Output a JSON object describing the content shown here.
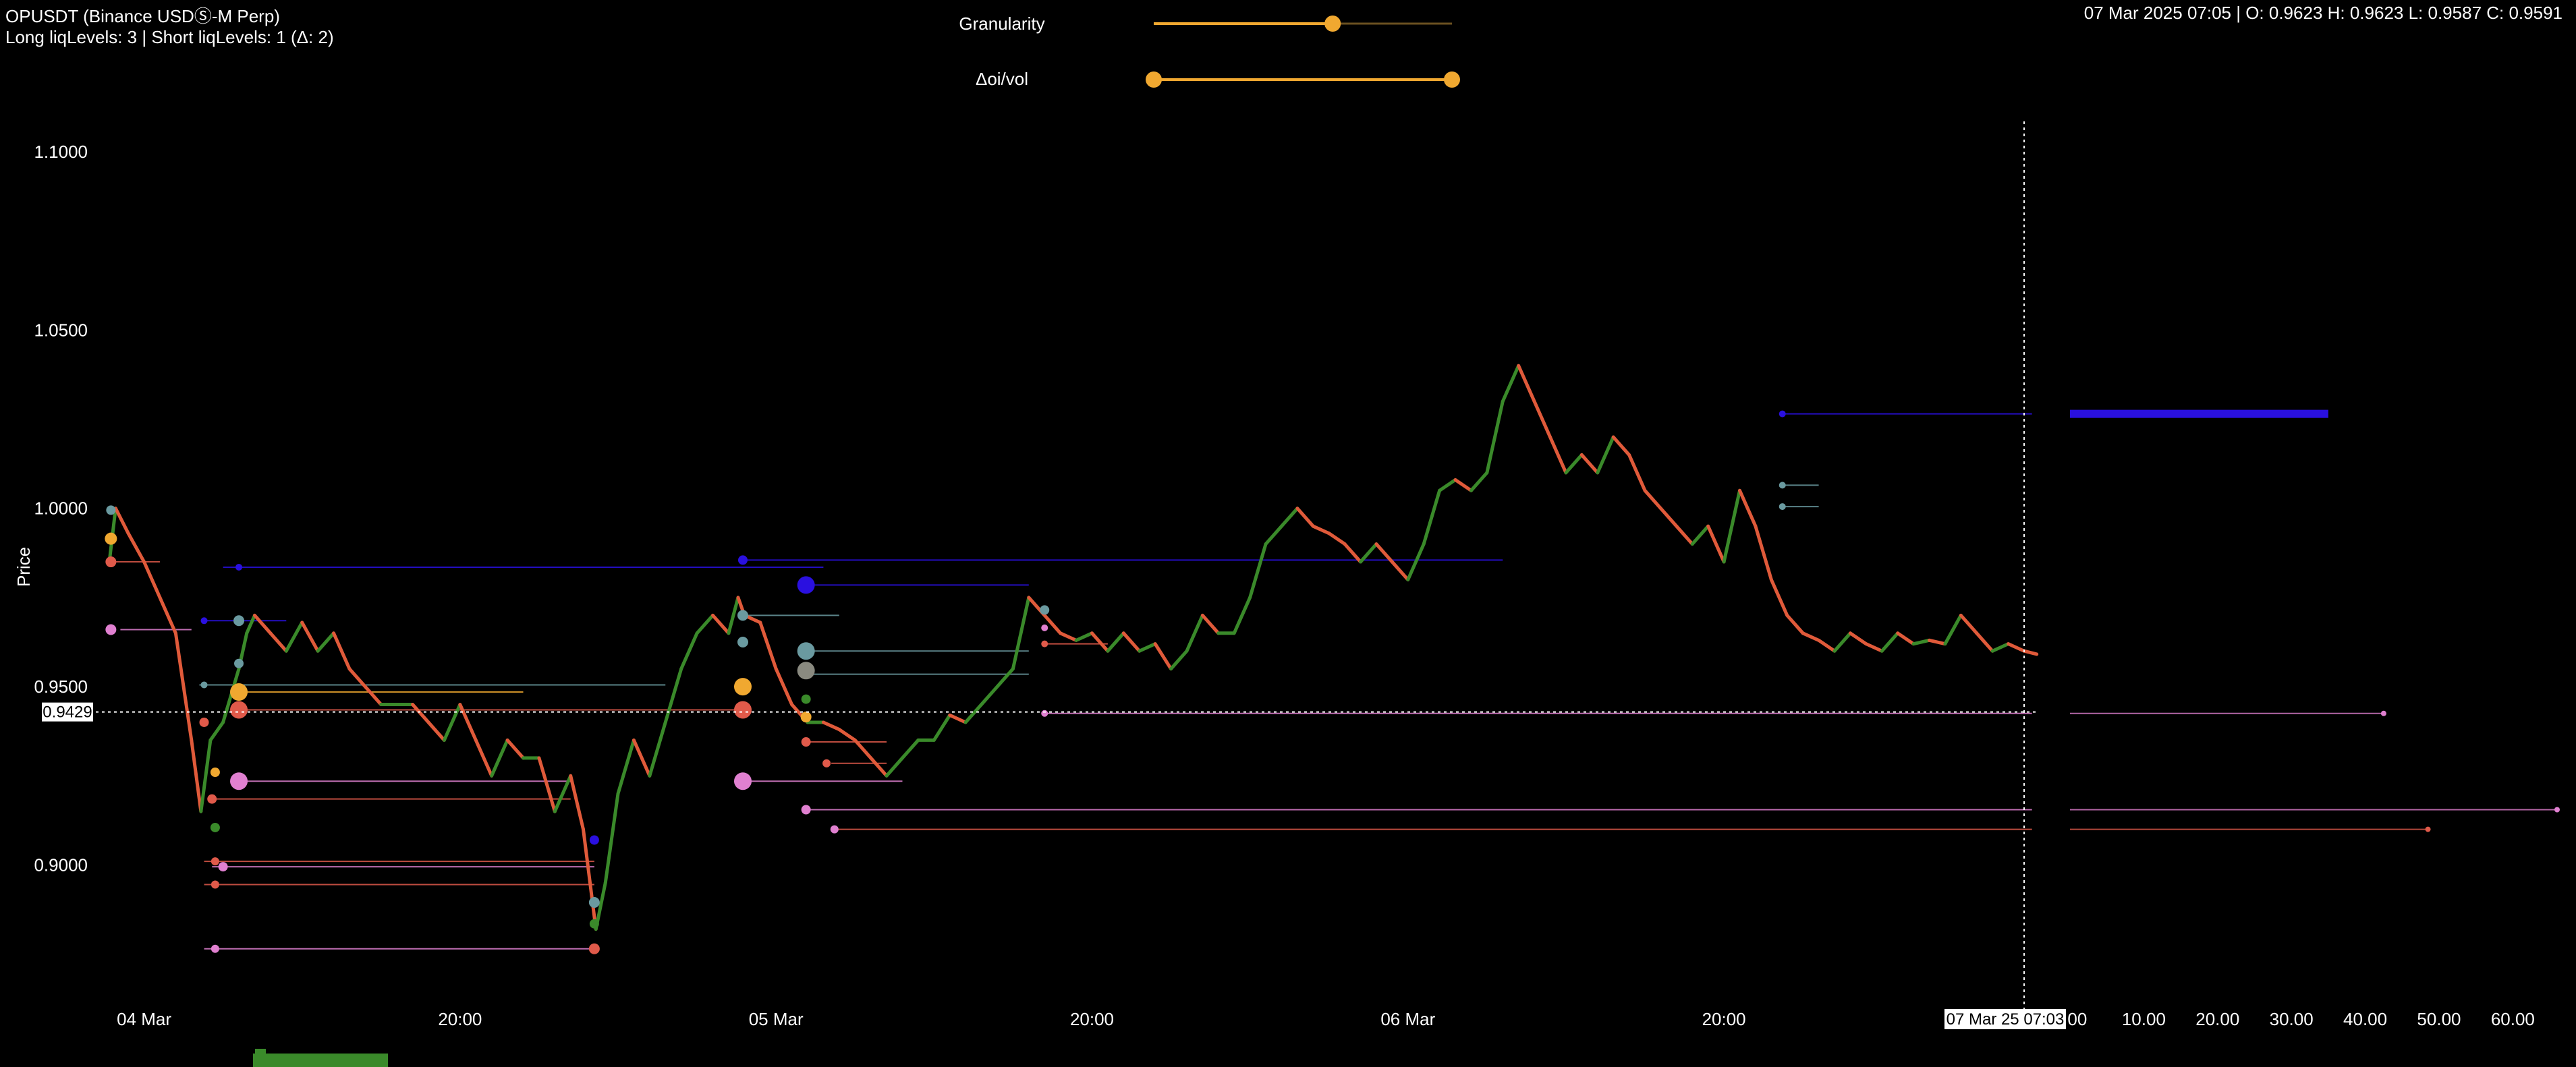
{
  "header": {
    "symbol": "OPUSDT (Binance USDⓈ-M Perp)",
    "liq_levels": "Long liqLevels: 3 | Short liqLevels: 1 (Δ: 2)",
    "ohlc": "07 Mar 2025 07:05 | O: 0.9623 H: 0.9623 L: 0.9587 C: 0.9591"
  },
  "controls": {
    "granularity_label": "Granularity",
    "granularity_value": 0.6,
    "doi_label": "Δoi/vol",
    "doi_range": [
      0.0,
      1.0
    ]
  },
  "colors": {
    "accent": "#f0a830",
    "up": "#3a8a2a",
    "down": "#e05a3a",
    "liq_blue": "#2a10e0",
    "liq_pink": "#e080d0",
    "liq_red": "#e05a4a",
    "liq_teal": "#6a9aa0",
    "volume": "#3a8a2a"
  },
  "chart_data": {
    "type": "line",
    "title": "",
    "ylabel": "Price",
    "ylim": [
      0.8755,
      1.1
    ],
    "yticks": [
      "1.1000",
      "1.0500",
      "1.0000",
      "0.9500",
      "0.9000"
    ],
    "ytick_values": [
      1.1,
      1.05,
      1.0,
      0.95,
      0.9
    ],
    "xtick_labels": [
      "04 Mar",
      "20:00",
      "05 Mar",
      "20:00",
      "06 Mar",
      "20:00"
    ],
    "x_hours": [
      0,
      20,
      40,
      60,
      80,
      100
    ],
    "x_range_hours": [
      -2.5,
      119
    ],
    "crosshair_label": "07 Mar 25 07:03",
    "crosshair_price_label": "0.9429",
    "crosshair_price": 0.9429,
    "crosshair_hour": 119,
    "price_series": [
      [
        -2.2,
        0.985
      ],
      [
        -1.8,
        1.0
      ],
      [
        -1.0,
        0.993
      ],
      [
        0.0,
        0.985
      ],
      [
        1.0,
        0.975
      ],
      [
        2.0,
        0.965
      ],
      [
        3.0,
        0.935
      ],
      [
        3.6,
        0.915
      ],
      [
        4.2,
        0.935
      ],
      [
        5.0,
        0.94
      ],
      [
        6.0,
        0.955
      ],
      [
        6.5,
        0.965
      ],
      [
        7.0,
        0.97
      ],
      [
        8.0,
        0.965
      ],
      [
        9.0,
        0.96
      ],
      [
        10.0,
        0.968
      ],
      [
        11.0,
        0.96
      ],
      [
        12.0,
        0.965
      ],
      [
        13.0,
        0.955
      ],
      [
        14.0,
        0.95
      ],
      [
        15.0,
        0.945
      ],
      [
        16.0,
        0.945
      ],
      [
        17.0,
        0.945
      ],
      [
        18.0,
        0.94
      ],
      [
        19.0,
        0.935
      ],
      [
        20.0,
        0.945
      ],
      [
        21.0,
        0.935
      ],
      [
        22.0,
        0.925
      ],
      [
        23.0,
        0.935
      ],
      [
        24.0,
        0.93
      ],
      [
        25.0,
        0.93
      ],
      [
        26.0,
        0.915
      ],
      [
        27.0,
        0.925
      ],
      [
        27.8,
        0.91
      ],
      [
        28.6,
        0.882
      ],
      [
        29.2,
        0.895
      ],
      [
        30.0,
        0.92
      ],
      [
        31.0,
        0.935
      ],
      [
        32.0,
        0.925
      ],
      [
        33.0,
        0.94
      ],
      [
        34.0,
        0.955
      ],
      [
        35.0,
        0.965
      ],
      [
        36.0,
        0.97
      ],
      [
        37.0,
        0.965
      ],
      [
        37.6,
        0.975
      ],
      [
        38.0,
        0.97
      ],
      [
        39.0,
        0.968
      ],
      [
        40.0,
        0.955
      ],
      [
        41.0,
        0.945
      ],
      [
        42.0,
        0.94
      ],
      [
        43.0,
        0.94
      ],
      [
        44.0,
        0.938
      ],
      [
        45.0,
        0.935
      ],
      [
        46.0,
        0.93
      ],
      [
        47.0,
        0.925
      ],
      [
        48.0,
        0.93
      ],
      [
        49.0,
        0.935
      ],
      [
        50.0,
        0.935
      ],
      [
        51.0,
        0.942
      ],
      [
        52.0,
        0.94
      ],
      [
        53.0,
        0.945
      ],
      [
        54.0,
        0.95
      ],
      [
        55.0,
        0.955
      ],
      [
        56.0,
        0.975
      ],
      [
        57.0,
        0.97
      ],
      [
        58.0,
        0.965
      ],
      [
        59.0,
        0.963
      ],
      [
        60.0,
        0.965
      ],
      [
        61.0,
        0.96
      ],
      [
        62.0,
        0.965
      ],
      [
        63.0,
        0.96
      ],
      [
        64.0,
        0.962
      ],
      [
        65.0,
        0.955
      ],
      [
        66.0,
        0.96
      ],
      [
        67.0,
        0.97
      ],
      [
        68.0,
        0.965
      ],
      [
        69.0,
        0.965
      ],
      [
        70.0,
        0.975
      ],
      [
        71.0,
        0.99
      ],
      [
        72.0,
        0.995
      ],
      [
        73.0,
        1.0
      ],
      [
        74.0,
        0.995
      ],
      [
        75.0,
        0.993
      ],
      [
        76.0,
        0.99
      ],
      [
        77.0,
        0.985
      ],
      [
        78.0,
        0.99
      ],
      [
        79.0,
        0.985
      ],
      [
        80.0,
        0.98
      ],
      [
        81.0,
        0.99
      ],
      [
        82.0,
        1.005
      ],
      [
        83.0,
        1.008
      ],
      [
        84.0,
        1.005
      ],
      [
        85.0,
        1.01
      ],
      [
        86.0,
        1.03
      ],
      [
        87.0,
        1.04
      ],
      [
        88.0,
        1.03
      ],
      [
        89.0,
        1.02
      ],
      [
        90.0,
        1.01
      ],
      [
        91.0,
        1.015
      ],
      [
        92.0,
        1.01
      ],
      [
        93.0,
        1.02
      ],
      [
        94.0,
        1.015
      ],
      [
        95.0,
        1.005
      ],
      [
        96.0,
        1.0
      ],
      [
        97.0,
        0.995
      ],
      [
        98.0,
        0.99
      ],
      [
        99.0,
        0.995
      ],
      [
        100.0,
        0.985
      ],
      [
        101.0,
        1.005
      ],
      [
        102.0,
        0.995
      ],
      [
        103.0,
        0.98
      ],
      [
        104.0,
        0.97
      ],
      [
        105.0,
        0.965
      ],
      [
        106.0,
        0.963
      ],
      [
        107.0,
        0.96
      ],
      [
        108.0,
        0.965
      ],
      [
        109.0,
        0.962
      ],
      [
        110.0,
        0.96
      ],
      [
        111.0,
        0.965
      ],
      [
        112.0,
        0.962
      ],
      [
        113.0,
        0.963
      ],
      [
        114.0,
        0.962
      ],
      [
        115.0,
        0.97
      ],
      [
        116.0,
        0.965
      ],
      [
        117.0,
        0.96
      ],
      [
        118.0,
        0.962
      ],
      [
        119.0,
        0.96
      ],
      [
        119.8,
        0.9591
      ]
    ],
    "liq_lines": [
      {
        "h0": 5.0,
        "h1": 43.0,
        "price": 0.9835,
        "color": "#2a10e0"
      },
      {
        "h0": 37.8,
        "h1": 86.0,
        "price": 0.9855,
        "color": "#2a10e0"
      },
      {
        "h0": 42.0,
        "h1": 56.0,
        "price": 0.9785,
        "color": "#2a10e0"
      },
      {
        "h0": 3.8,
        "h1": 9.0,
        "price": 0.9685,
        "color": "#2a10e0"
      },
      {
        "h0": 3.5,
        "h1": 33.0,
        "price": 0.9505,
        "color": "#6a9aa0"
      },
      {
        "h0": 42.0,
        "h1": 56.0,
        "price": 0.96,
        "color": "#6a9aa0"
      },
      {
        "h0": 42.0,
        "h1": 56.0,
        "price": 0.9535,
        "color": "#6a9aa0"
      },
      {
        "h0": 37.8,
        "h1": 44.0,
        "price": 0.97,
        "color": "#6a9aa0"
      },
      {
        "h0": 6.0,
        "h1": 24.0,
        "price": 0.9485,
        "color": "#f0a830"
      },
      {
        "h0": 6.0,
        "h1": 37.5,
        "price": 0.9435,
        "color": "#e05a4a"
      },
      {
        "h0": 6.0,
        "h1": 27.0,
        "price": 0.9235,
        "color": "#e080d0"
      },
      {
        "h0": 37.8,
        "h1": 48.0,
        "price": 0.9235,
        "color": "#e080d0"
      },
      {
        "h0": 4.3,
        "h1": 27.0,
        "price": 0.9185,
        "color": "#e05a4a"
      },
      {
        "h0": 3.8,
        "h1": 28.5,
        "price": 0.901,
        "color": "#e05a4a"
      },
      {
        "h0": 4.3,
        "h1": 28.5,
        "price": 0.8995,
        "color": "#e080d0"
      },
      {
        "h0": 3.8,
        "h1": 28.5,
        "price": 0.8945,
        "color": "#e05a4a"
      },
      {
        "h0": 3.8,
        "h1": 28.5,
        "price": 0.8765,
        "color": "#e080d0"
      },
      {
        "h0": -1.5,
        "h1": 3.0,
        "price": 0.966,
        "color": "#e080d0"
      },
      {
        "h0": -1.8,
        "h1": 1.0,
        "price": 0.985,
        "color": "#e05a4a"
      },
      {
        "h0": 42.0,
        "h1": 47.0,
        "price": 0.9345,
        "color": "#e05a4a"
      },
      {
        "h0": 43.5,
        "h1": 47.0,
        "price": 0.9285,
        "color": "#e05a4a"
      },
      {
        "h0": 57.0,
        "h1": 61.0,
        "price": 0.962,
        "color": "#e05a4a"
      },
      {
        "h0": 57.0,
        "h1": 119.5,
        "price": 0.9425,
        "color": "#e080d0"
      },
      {
        "h0": 42.0,
        "h1": 119.5,
        "price": 0.9155,
        "color": "#e080d0"
      },
      {
        "h0": 43.7,
        "h1": 119.5,
        "price": 0.91,
        "color": "#e05a4a"
      },
      {
        "h0": 103.7,
        "h1": 119.5,
        "price": 1.0265,
        "color": "#2a10e0"
      },
      {
        "h0": 103.7,
        "h1": 106.0,
        "price": 1.0065,
        "color": "#6a9aa0"
      },
      {
        "h0": 103.7,
        "h1": 106.0,
        "price": 1.0005,
        "color": "#6a9aa0"
      }
    ],
    "liq_dots": [
      {
        "h": -2.1,
        "price": 0.9995,
        "r": 7,
        "color": "#6a9aa0"
      },
      {
        "h": -2.1,
        "price": 0.9915,
        "r": 9,
        "color": "#f0a830"
      },
      {
        "h": -2.1,
        "price": 0.985,
        "r": 8,
        "color": "#e05a4a"
      },
      {
        "h": -2.1,
        "price": 0.966,
        "r": 8,
        "color": "#e080d0"
      },
      {
        "h": 3.8,
        "price": 0.9505,
        "r": 5,
        "color": "#6a9aa0"
      },
      {
        "h": 3.8,
        "price": 0.94,
        "r": 7,
        "color": "#e05a4a"
      },
      {
        "h": 3.8,
        "price": 0.9685,
        "r": 5,
        "color": "#2a10e0"
      },
      {
        "h": 4.3,
        "price": 0.9185,
        "r": 7,
        "color": "#e05a4a"
      },
      {
        "h": 4.5,
        "price": 0.926,
        "r": 7,
        "color": "#f0a830"
      },
      {
        "h": 4.5,
        "price": 0.9105,
        "r": 7,
        "color": "#3a8a2a"
      },
      {
        "h": 4.5,
        "price": 0.901,
        "r": 6,
        "color": "#e05a4a"
      },
      {
        "h": 4.5,
        "price": 0.8945,
        "r": 6,
        "color": "#e05a4a"
      },
      {
        "h": 5.0,
        "price": 0.8995,
        "r": 7,
        "color": "#e080d0"
      },
      {
        "h": 4.5,
        "price": 0.8765,
        "r": 6,
        "color": "#e080d0"
      },
      {
        "h": 6.0,
        "price": 0.9835,
        "r": 5,
        "color": "#2a10e0"
      },
      {
        "h": 6.0,
        "price": 0.9685,
        "r": 8,
        "color": "#6a9aa0"
      },
      {
        "h": 6.0,
        "price": 0.9565,
        "r": 7,
        "color": "#6a9aa0"
      },
      {
        "h": 6.0,
        "price": 0.9485,
        "r": 13,
        "color": "#f0a830"
      },
      {
        "h": 6.0,
        "price": 0.9435,
        "r": 13,
        "color": "#e05a4a"
      },
      {
        "h": 6.0,
        "price": 0.9235,
        "r": 13,
        "color": "#e080d0"
      },
      {
        "h": 28.5,
        "price": 0.907,
        "r": 7,
        "color": "#2a10e0"
      },
      {
        "h": 28.5,
        "price": 0.8895,
        "r": 8,
        "color": "#6a9aa0"
      },
      {
        "h": 28.5,
        "price": 0.8835,
        "r": 7,
        "color": "#3a8a2a"
      },
      {
        "h": 28.5,
        "price": 0.8765,
        "r": 8,
        "color": "#e05a4a"
      },
      {
        "h": 37.9,
        "price": 0.9855,
        "r": 7,
        "color": "#2a10e0"
      },
      {
        "h": 37.9,
        "price": 0.97,
        "r": 8,
        "color": "#6a9aa0"
      },
      {
        "h": 37.9,
        "price": 0.9625,
        "r": 8,
        "color": "#6a9aa0"
      },
      {
        "h": 37.9,
        "price": 0.95,
        "r": 13,
        "color": "#f0a830"
      },
      {
        "h": 37.9,
        "price": 0.9435,
        "r": 13,
        "color": "#e05a4a"
      },
      {
        "h": 37.9,
        "price": 0.9235,
        "r": 13,
        "color": "#e080d0"
      },
      {
        "h": 41.9,
        "price": 0.9785,
        "r": 13,
        "color": "#2a10e0"
      },
      {
        "h": 41.9,
        "price": 0.96,
        "r": 13,
        "color": "#6a9aa0"
      },
      {
        "h": 41.9,
        "price": 0.9545,
        "r": 13,
        "color": "#8a8a80"
      },
      {
        "h": 41.9,
        "price": 0.9465,
        "r": 7,
        "color": "#3a8a2a"
      },
      {
        "h": 41.9,
        "price": 0.9415,
        "r": 8,
        "color": "#f0a830"
      },
      {
        "h": 41.9,
        "price": 0.9345,
        "r": 7,
        "color": "#e05a4a"
      },
      {
        "h": 41.9,
        "price": 0.9155,
        "r": 7,
        "color": "#e080d0"
      },
      {
        "h": 43.2,
        "price": 0.9285,
        "r": 6,
        "color": "#e05a4a"
      },
      {
        "h": 43.7,
        "price": 0.91,
        "r": 6,
        "color": "#e080d0"
      },
      {
        "h": 57.0,
        "price": 0.9715,
        "r": 7,
        "color": "#6a9aa0"
      },
      {
        "h": 57.0,
        "price": 0.9665,
        "r": 5,
        "color": "#e080d0"
      },
      {
        "h": 57.0,
        "price": 0.962,
        "r": 5,
        "color": "#e05a4a"
      },
      {
        "h": 57.0,
        "price": 0.9425,
        "r": 5,
        "color": "#e080d0"
      },
      {
        "h": 103.7,
        "price": 1.0265,
        "r": 5,
        "color": "#2a10e0"
      },
      {
        "h": 103.7,
        "price": 1.0065,
        "r": 5,
        "color": "#6a9aa0"
      },
      {
        "h": 103.7,
        "price": 1.0005,
        "r": 5,
        "color": "#6a9aa0"
      }
    ],
    "volume_profile": {
      "xticks": [
        "0.00",
        "10.00",
        "20.00",
        "30.00",
        "40.00",
        "50.00",
        "60.00"
      ],
      "xtick_values": [
        0,
        10,
        20,
        30,
        40,
        50,
        60
      ],
      "xlim": [
        0,
        66
      ],
      "bars": [
        {
          "price": 1.0265,
          "value": 35.0,
          "color": "#2a10e0",
          "thick": true
        },
        {
          "price": 0.9425,
          "value": 42.5,
          "color": "#e080d0",
          "thick": false
        },
        {
          "price": 0.9155,
          "value": 66.0,
          "color": "#e080d0",
          "thick": false
        },
        {
          "price": 0.91,
          "value": 48.5,
          "color": "#e05a4a",
          "thick": false
        }
      ]
    }
  }
}
